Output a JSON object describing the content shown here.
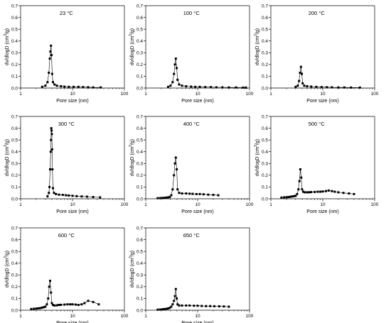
{
  "figure": {
    "colors": {
      "axis": "#000000",
      "series": "#000000",
      "background": "#ffffff"
    }
  },
  "chart_data": [
    {
      "type": "scatter",
      "title": "23 °C",
      "xlabel": "Pore size (nm)",
      "ylabel": "dv/dlogD (cm³/g)",
      "xscale": "log",
      "xlim": [
        1,
        100
      ],
      "ylim": [
        0,
        0.7
      ],
      "xticks": [
        1,
        10,
        100
      ],
      "yticks": [
        0.0,
        0.1,
        0.2,
        0.3,
        0.4,
        0.5,
        0.6,
        0.7
      ],
      "marker": "filled-square",
      "line": "thin-connecting",
      "series": [
        {
          "x": [
            2.6,
            3.0,
            3.3,
            3.5,
            3.65,
            3.75,
            3.85,
            3.95,
            4.05,
            4.2,
            4.5,
            5.0,
            6.0,
            7.0,
            8.5,
            10.5,
            13.0,
            16.0,
            20.0,
            25.0,
            35.0
          ],
          "y": [
            0.01,
            0.02,
            0.05,
            0.13,
            0.25,
            0.31,
            0.36,
            0.28,
            0.12,
            0.05,
            0.03,
            0.02,
            0.015,
            0.012,
            0.01,
            0.01,
            0.01,
            0.008,
            0.007,
            0.005,
            0.005
          ]
        }
      ]
    },
    {
      "type": "scatter",
      "title": "100 °C",
      "xlabel": "Pore size (nm)",
      "ylabel": "dv/dlogD (cm³/g)",
      "xscale": "log",
      "xlim": [
        1,
        100
      ],
      "ylim": [
        0,
        0.7
      ],
      "xticks": [
        1,
        10,
        100
      ],
      "yticks": [
        0.0,
        0.1,
        0.2,
        0.3,
        0.4,
        0.5,
        0.6,
        0.7
      ],
      "marker": "filled-square",
      "line": "thin-connecting",
      "series": [
        {
          "x": [
            2.7,
            3.0,
            3.3,
            3.5,
            3.65,
            3.8,
            3.95,
            4.1,
            4.4,
            5.0,
            6.0,
            7.5,
            9.0,
            11.0,
            14.0,
            18.0,
            23.0,
            30.0,
            40.0,
            55.0,
            75.0,
            85.0
          ],
          "y": [
            0.01,
            0.02,
            0.05,
            0.12,
            0.2,
            0.25,
            0.17,
            0.07,
            0.03,
            0.02,
            0.015,
            0.012,
            0.01,
            0.01,
            0.008,
            0.008,
            0.006,
            0.006,
            0.005,
            0.005,
            0.004,
            0.004
          ]
        }
      ]
    },
    {
      "type": "scatter",
      "title": "200 °C",
      "xlabel": "Pore size (nm)",
      "ylabel": "dv/dlogD (cm³/g)",
      "xscale": "log",
      "xlim": [
        1,
        100
      ],
      "ylim": [
        0,
        0.7
      ],
      "xticks": [
        1,
        10,
        100
      ],
      "yticks": [
        0.0,
        0.1,
        0.2,
        0.3,
        0.4,
        0.5,
        0.6,
        0.7
      ],
      "marker": "filled-square",
      "line": "thin-connecting",
      "series": [
        {
          "x": [
            3.0,
            3.3,
            3.5,
            3.65,
            3.8,
            3.95,
            4.1,
            4.4,
            5.0,
            6.0,
            7.5,
            9.5,
            12.0,
            15.0,
            20.0,
            26.0,
            35.0,
            52.0
          ],
          "y": [
            0.01,
            0.02,
            0.06,
            0.13,
            0.18,
            0.12,
            0.04,
            0.02,
            0.015,
            0.012,
            0.01,
            0.008,
            0.007,
            0.006,
            0.005,
            0.005,
            0.004,
            0.004
          ]
        }
      ]
    },
    {
      "type": "scatter",
      "title": "300 °C",
      "xlabel": "Pore size (nm)",
      "ylabel": "dv/dlogD (cm³/g)",
      "xscale": "log",
      "xlim": [
        1,
        100
      ],
      "ylim": [
        0,
        0.7
      ],
      "xticks": [
        1,
        10,
        100
      ],
      "yticks": [
        0.0,
        0.1,
        0.2,
        0.3,
        0.4,
        0.5,
        0.6,
        0.7
      ],
      "marker": "filled-square",
      "line": "thin-connecting",
      "series": [
        {
          "x": [
            3.3,
            3.5,
            3.6,
            3.7,
            3.8,
            3.85,
            3.9,
            3.95,
            4.0,
            4.05,
            4.1,
            4.2,
            4.4,
            4.8,
            5.5,
            6.5,
            7.5,
            8.5,
            10.0,
            12.0,
            15.0,
            19.0,
            25.0,
            34.0
          ],
          "y": [
            0.02,
            0.05,
            0.1,
            0.25,
            0.4,
            0.5,
            0.6,
            0.58,
            0.55,
            0.42,
            0.25,
            0.09,
            0.05,
            0.04,
            0.035,
            0.033,
            0.03,
            0.028,
            0.025,
            0.022,
            0.02,
            0.018,
            0.015,
            0.012
          ]
        }
      ]
    },
    {
      "type": "scatter",
      "title": "400 °C",
      "xlabel": "Pore size (nm)",
      "ylabel": "dv/dlogD (cm³/g)",
      "xscale": "log",
      "xlim": [
        1,
        100
      ],
      "ylim": [
        0,
        0.7
      ],
      "xticks": [
        1,
        10,
        100
      ],
      "yticks": [
        0.0,
        0.1,
        0.2,
        0.3,
        0.4,
        0.5,
        0.6,
        0.7
      ],
      "marker": "filled-square",
      "line": "thin-connecting",
      "series": [
        {
          "x": [
            1.7,
            1.9,
            2.1,
            2.3,
            2.5,
            2.7,
            2.9,
            3.1,
            3.3,
            3.5,
            3.65,
            3.8,
            3.95,
            4.1,
            4.4,
            5.0,
            6.0,
            7.0,
            8.0,
            9.5,
            11.0,
            13.0,
            16.0,
            20.0,
            25.0
          ],
          "y": [
            0.005,
            0.006,
            0.007,
            0.008,
            0.01,
            0.012,
            0.015,
            0.03,
            0.08,
            0.2,
            0.3,
            0.35,
            0.25,
            0.08,
            0.05,
            0.045,
            0.045,
            0.043,
            0.042,
            0.04,
            0.04,
            0.038,
            0.035,
            0.033,
            0.03
          ]
        }
      ]
    },
    {
      "type": "scatter",
      "title": "500 °C",
      "xlabel": "Pore size (nm)",
      "ylabel": "dv/dlogD (cm³/g)",
      "xscale": "log",
      "xlim": [
        1,
        100
      ],
      "ylim": [
        0,
        0.7
      ],
      "xticks": [
        1,
        10,
        100
      ],
      "yticks": [
        0.0,
        0.1,
        0.2,
        0.3,
        0.4,
        0.5,
        0.6,
        0.7
      ],
      "marker": "filled-square",
      "line": "thin-connecting",
      "series": [
        {
          "x": [
            1.6,
            1.8,
            2.0,
            2.2,
            2.4,
            2.6,
            2.8,
            3.0,
            3.2,
            3.4,
            3.55,
            3.7,
            3.85,
            4.0,
            4.2,
            4.5,
            5.0,
            5.5,
            6.0,
            7.0,
            8.0,
            9.0,
            10.0,
            11.5,
            13.0,
            15.0,
            17.0,
            20.0,
            25.0,
            32.0,
            40.0
          ],
          "y": [
            0.01,
            0.012,
            0.013,
            0.015,
            0.017,
            0.02,
            0.022,
            0.025,
            0.04,
            0.08,
            0.15,
            0.25,
            0.18,
            0.08,
            0.06,
            0.055,
            0.055,
            0.055,
            0.057,
            0.058,
            0.06,
            0.06,
            0.062,
            0.065,
            0.07,
            0.065,
            0.06,
            0.055,
            0.05,
            0.045,
            0.04
          ]
        }
      ]
    },
    {
      "type": "scatter",
      "title": "600 °C",
      "xlabel": "Pore size (nm)",
      "ylabel": "dv/dlogD (cm³/g)",
      "xscale": "log",
      "xlim": [
        1,
        100
      ],
      "ylim": [
        0,
        0.7
      ],
      "xticks": [
        1,
        10,
        100
      ],
      "yticks": [
        0.0,
        0.1,
        0.2,
        0.3,
        0.4,
        0.5,
        0.6,
        0.7
      ],
      "marker": "filled-square",
      "line": "thin-connecting",
      "series": [
        {
          "x": [
            1.6,
            1.8,
            2.0,
            2.2,
            2.4,
            2.6,
            2.8,
            3.0,
            3.2,
            3.4,
            3.55,
            3.7,
            3.85,
            4.0,
            4.2,
            4.5,
            5.0,
            5.5,
            6.0,
            7.0,
            8.0,
            9.0,
            10.0,
            11.5,
            13.0,
            15.0,
            17.0,
            20.0,
            25.0,
            32.0
          ],
          "y": [
            0.01,
            0.012,
            0.014,
            0.016,
            0.018,
            0.022,
            0.026,
            0.03,
            0.05,
            0.1,
            0.2,
            0.25,
            0.15,
            0.06,
            0.045,
            0.04,
            0.042,
            0.045,
            0.046,
            0.048,
            0.05,
            0.05,
            0.05,
            0.048,
            0.045,
            0.05,
            0.06,
            0.08,
            0.07,
            0.05
          ]
        }
      ]
    },
    {
      "type": "scatter",
      "title": "650 °C",
      "xlabel": "Pore size (nm)",
      "ylabel": "dv/dlogD (cm³/g)",
      "xscale": "log",
      "xlim": [
        1,
        100
      ],
      "ylim": [
        0,
        0.7
      ],
      "xticks": [
        1,
        10,
        100
      ],
      "yticks": [
        0.0,
        0.1,
        0.2,
        0.3,
        0.4,
        0.5,
        0.6,
        0.7
      ],
      "marker": "filled-square",
      "line": "thin-connecting",
      "series": [
        {
          "x": [
            1.7,
            1.9,
            2.1,
            2.3,
            2.5,
            2.7,
            2.9,
            3.1,
            3.3,
            3.5,
            3.65,
            3.8,
            3.95,
            4.1,
            4.4,
            5.0,
            6.0,
            7.0,
            8.5,
            10.0,
            12.0,
            14.5,
            17.5,
            21.0,
            26.0,
            32.0,
            40.0
          ],
          "y": [
            0.005,
            0.006,
            0.008,
            0.01,
            0.012,
            0.015,
            0.02,
            0.03,
            0.05,
            0.08,
            0.12,
            0.18,
            0.1,
            0.05,
            0.04,
            0.04,
            0.04,
            0.04,
            0.038,
            0.038,
            0.036,
            0.035,
            0.035,
            0.034,
            0.033,
            0.032,
            0.03
          ]
        }
      ]
    }
  ]
}
